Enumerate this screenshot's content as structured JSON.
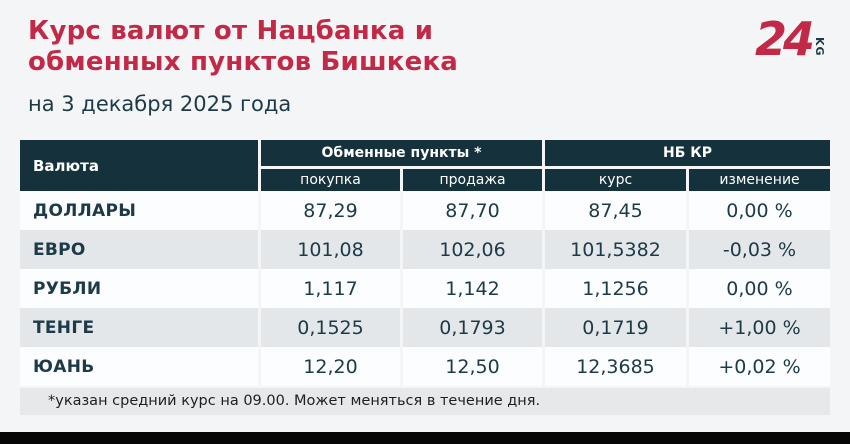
{
  "header": {
    "title_line1": "Курс валют от Нацбанка и",
    "title_line2": "обменных пунктов Бишкека",
    "subtitle": "на 3 декабря 2025 года"
  },
  "logo": {
    "number": "24",
    "suffix": "KG"
  },
  "colors": {
    "accent_red": "#c22946",
    "dark_teal": "#1c3a47",
    "table_header_bg": "#14313c",
    "stripe_row_bg": "#e4e7e9",
    "white_row_bg": "#fcfdfe",
    "footnote_bg": "#e7e8ea",
    "page_bg": "#f4f5f7",
    "bottom_bar": "#060607"
  },
  "table": {
    "col_currency": "Валюта",
    "group_exchange": "Обменные пункты *",
    "group_nbkr": "НБ КР",
    "sub_buy": "покупка",
    "sub_sell": "продажа",
    "sub_rate": "курс",
    "sub_change": "изменение",
    "rows": [
      {
        "currency": "ДОЛЛАРЫ",
        "buy": "87,29",
        "sell": "87,70",
        "rate": "87,45",
        "change": "0,00 %"
      },
      {
        "currency": "ЕВРО",
        "buy": "101,08",
        "sell": "102,06",
        "rate": "101,5382",
        "change": "-0,03 %"
      },
      {
        "currency": "РУБЛИ",
        "buy": "1,117",
        "sell": "1,142",
        "rate": "1,1256",
        "change": "0,00 %"
      },
      {
        "currency": "ТЕНГЕ",
        "buy": "0,1525",
        "sell": "0,1793",
        "rate": "0,1719",
        "change": "+1,00 %"
      },
      {
        "currency": "ЮАНЬ",
        "buy": "12,20",
        "sell": "12,50",
        "rate": "12,3685",
        "change": "+0,02 %"
      }
    ]
  },
  "footnote": "*указан средний курс на 09.00. Может меняться в течение дня.",
  "chart_data": {
    "type": "table",
    "title": "Курс валют от Нацбанка и обменных пунктов Бишкека",
    "subtitle": "на 3 декабря 2025 года",
    "column_groups": [
      "Валюта",
      "Обменные пункты *",
      "НБ КР"
    ],
    "columns": [
      "Валюта",
      "покупка",
      "продажа",
      "курс",
      "изменение"
    ],
    "rows": [
      [
        "ДОЛЛАРЫ",
        "87,29",
        "87,70",
        "87,45",
        "0,00 %"
      ],
      [
        "ЕВРО",
        "101,08",
        "102,06",
        "101,5382",
        "-0,03 %"
      ],
      [
        "РУБЛИ",
        "1,117",
        "1,142",
        "1,1256",
        "0,00 %"
      ],
      [
        "ТЕНГЕ",
        "0,1525",
        "0,1793",
        "0,1719",
        "+1,00 %"
      ],
      [
        "ЮАНЬ",
        "12,20",
        "12,50",
        "12,3685",
        "+0,02 %"
      ]
    ],
    "footnote": "*указан средний курс на 09.00. Может меняться в течение дня."
  }
}
